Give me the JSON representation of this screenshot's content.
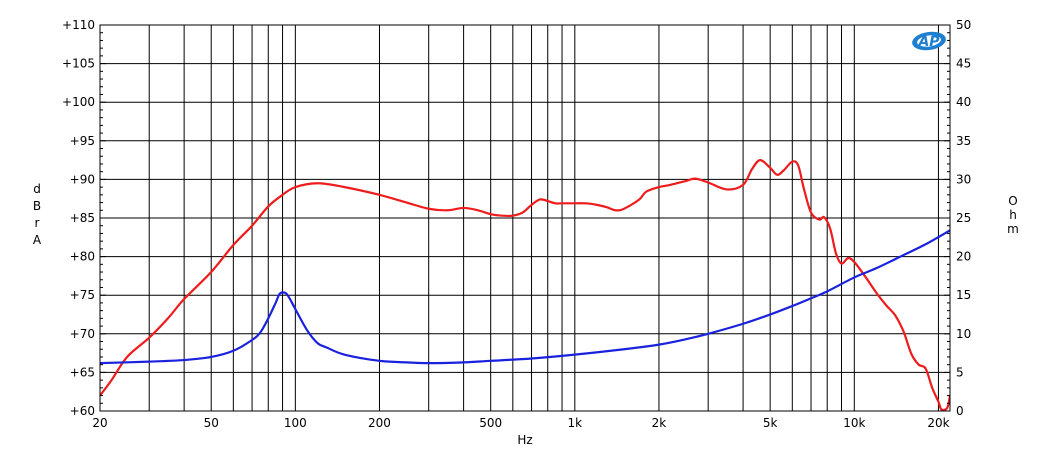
{
  "chart_data": {
    "type": "line",
    "xlabel": "Hz",
    "ylabel_left": "dBrA",
    "ylabel_right": "Ohm",
    "logo_text": "AP",
    "x_scale": "log",
    "xlim": [
      20,
      22000
    ],
    "ylim_left": [
      60,
      110
    ],
    "ylim_right": [
      0,
      50
    ],
    "grid": true,
    "x_major_ticks": [
      {
        "value": 20,
        "label": "20"
      },
      {
        "value": 50,
        "label": "50"
      },
      {
        "value": 100,
        "label": "100"
      },
      {
        "value": 200,
        "label": "200"
      },
      {
        "value": 500,
        "label": "500"
      },
      {
        "value": 1000,
        "label": "1k"
      },
      {
        "value": 2000,
        "label": "2k"
      },
      {
        "value": 5000,
        "label": "5k"
      },
      {
        "value": 10000,
        "label": "10k"
      },
      {
        "value": 20000,
        "label": "20k"
      }
    ],
    "x_grid_values": [
      20,
      30,
      40,
      50,
      60,
      70,
      80,
      90,
      100,
      200,
      300,
      400,
      500,
      600,
      700,
      800,
      900,
      1000,
      2000,
      3000,
      4000,
      5000,
      6000,
      7000,
      8000,
      9000,
      10000,
      20000
    ],
    "y_left_ticks": [
      {
        "value": 110,
        "label": "+110"
      },
      {
        "value": 105,
        "label": "+105"
      },
      {
        "value": 100,
        "label": "+100"
      },
      {
        "value": 95,
        "label": "+95"
      },
      {
        "value": 90,
        "label": "+90"
      },
      {
        "value": 85,
        "label": "+85"
      },
      {
        "value": 80,
        "label": "+80"
      },
      {
        "value": 75,
        "label": "+75"
      },
      {
        "value": 70,
        "label": "+70"
      },
      {
        "value": 65,
        "label": "+65"
      },
      {
        "value": 60,
        "label": "+60"
      }
    ],
    "y_right_ticks": [
      {
        "value": 50,
        "label": "50"
      },
      {
        "value": 45,
        "label": "45"
      },
      {
        "value": 40,
        "label": "40"
      },
      {
        "value": 35,
        "label": "35"
      },
      {
        "value": 30,
        "label": "30"
      },
      {
        "value": 25,
        "label": "25"
      },
      {
        "value": 20,
        "label": "20"
      },
      {
        "value": 15,
        "label": "15"
      },
      {
        "value": 10,
        "label": "10"
      },
      {
        "value": 5,
        "label": "5"
      },
      {
        "value": 0,
        "label": "0"
      }
    ],
    "series": [
      {
        "axis": "left",
        "color": "#ee1c1c",
        "points": [
          [
            20,
            62
          ],
          [
            22,
            64
          ],
          [
            25,
            67
          ],
          [
            30,
            69.5
          ],
          [
            35,
            72
          ],
          [
            40,
            74.5
          ],
          [
            50,
            78
          ],
          [
            60,
            81.5
          ],
          [
            70,
            84
          ],
          [
            80,
            86.5
          ],
          [
            90,
            88
          ],
          [
            100,
            89
          ],
          [
            120,
            89.5
          ],
          [
            150,
            89
          ],
          [
            200,
            88
          ],
          [
            250,
            87
          ],
          [
            300,
            86.2
          ],
          [
            350,
            86
          ],
          [
            400,
            86.3
          ],
          [
            450,
            86
          ],
          [
            500,
            85.5
          ],
          [
            550,
            85.3
          ],
          [
            600,
            85.3
          ],
          [
            650,
            85.7
          ],
          [
            700,
            86.7
          ],
          [
            750,
            87.4
          ],
          [
            800,
            87.2
          ],
          [
            850,
            86.9
          ],
          [
            900,
            86.9
          ],
          [
            1000,
            86.9
          ],
          [
            1100,
            86.9
          ],
          [
            1200,
            86.7
          ],
          [
            1300,
            86.4
          ],
          [
            1400,
            86
          ],
          [
            1500,
            86.2
          ],
          [
            1700,
            87.4
          ],
          [
            1800,
            88.4
          ],
          [
            2000,
            89
          ],
          [
            2200,
            89.3
          ],
          [
            2500,
            89.8
          ],
          [
            2700,
            90.1
          ],
          [
            3000,
            89.6
          ],
          [
            3500,
            88.7
          ],
          [
            4000,
            89.3
          ],
          [
            4300,
            91.3
          ],
          [
            4600,
            92.5
          ],
          [
            5000,
            91.5
          ],
          [
            5300,
            90.6
          ],
          [
            5600,
            91.2
          ],
          [
            6000,
            92.3
          ],
          [
            6300,
            91.8
          ],
          [
            6600,
            88.8
          ],
          [
            7000,
            85.7
          ],
          [
            7500,
            84.8
          ],
          [
            7800,
            85.1
          ],
          [
            8200,
            83.6
          ],
          [
            8600,
            80.4
          ],
          [
            9000,
            79.1
          ],
          [
            9500,
            79.8
          ],
          [
            10000,
            79.3
          ],
          [
            11000,
            77.3
          ],
          [
            12000,
            75.3
          ],
          [
            13000,
            73.7
          ],
          [
            14000,
            72.4
          ],
          [
            15000,
            70.3
          ],
          [
            16000,
            67.4
          ],
          [
            17000,
            66
          ],
          [
            18000,
            65.5
          ],
          [
            19000,
            63
          ],
          [
            20000,
            61.2
          ],
          [
            20500,
            60.2
          ],
          [
            21500,
            60.4
          ],
          [
            22000,
            62
          ]
        ]
      },
      {
        "axis": "right",
        "color": "#1a22dd",
        "points": [
          [
            20,
            6.2
          ],
          [
            30,
            6.4
          ],
          [
            40,
            6.6
          ],
          [
            50,
            7
          ],
          [
            60,
            7.8
          ],
          [
            70,
            9.2
          ],
          [
            75,
            10.2
          ],
          [
            80,
            12
          ],
          [
            85,
            14
          ],
          [
            88,
            15.2
          ],
          [
            92,
            15.3
          ],
          [
            95,
            14.7
          ],
          [
            100,
            13.2
          ],
          [
            110,
            10.5
          ],
          [
            120,
            8.8
          ],
          [
            130,
            8.2
          ],
          [
            150,
            7.3
          ],
          [
            200,
            6.5
          ],
          [
            250,
            6.3
          ],
          [
            300,
            6.2
          ],
          [
            400,
            6.3
          ],
          [
            500,
            6.5
          ],
          [
            700,
            6.8
          ],
          [
            1000,
            7.3
          ],
          [
            1500,
            8
          ],
          [
            2000,
            8.6
          ],
          [
            2500,
            9.3
          ],
          [
            3000,
            10
          ],
          [
            4000,
            11.3
          ],
          [
            5000,
            12.5
          ],
          [
            6000,
            13.6
          ],
          [
            7000,
            14.6
          ],
          [
            8000,
            15.5
          ],
          [
            10000,
            17.3
          ],
          [
            12000,
            18.5
          ],
          [
            15000,
            20.2
          ],
          [
            18000,
            21.6
          ],
          [
            22000,
            23.4
          ]
        ]
      }
    ]
  }
}
